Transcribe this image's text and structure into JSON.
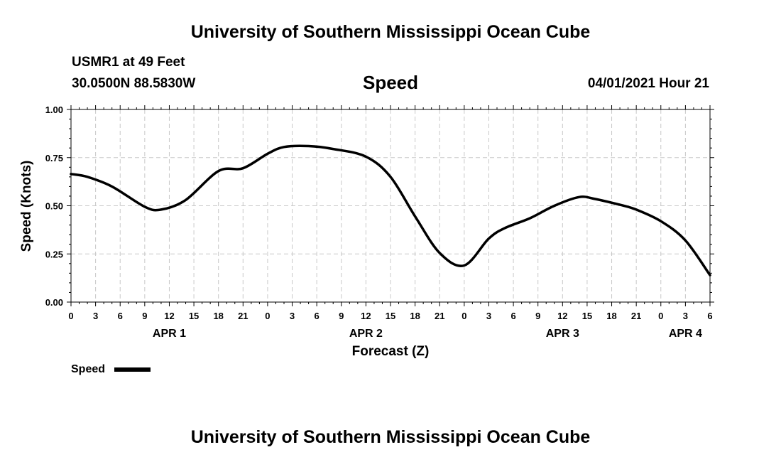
{
  "page_title_top": "University of Southern Mississippi Ocean Cube",
  "page_title_bottom": "University of Southern Mississippi Ocean Cube",
  "station": "USMR1 at 49 Feet",
  "coords": "30.0500N  88.5830W",
  "chart_heading": "Speed",
  "issued": "04/01/2021 Hour 21",
  "legend": {
    "label": "Speed",
    "color": "#000000"
  },
  "chart_data": {
    "type": "line",
    "title": "Speed",
    "xlabel": "Forecast (Z)",
    "ylabel": "Speed (Knots)",
    "xlim": [
      0,
      78
    ],
    "ylim": [
      0,
      1
    ],
    "grid": true,
    "yticks": [
      "0.00",
      "0.25",
      "0.50",
      "0.75",
      "1.00"
    ],
    "xtick_labels": [
      "0",
      "3",
      "6",
      "9",
      "12",
      "15",
      "18",
      "21",
      "0",
      "3",
      "6",
      "9",
      "12",
      "15",
      "18",
      "21",
      "0",
      "3",
      "6",
      "9",
      "12",
      "15",
      "18",
      "21",
      "0",
      "3",
      "6"
    ],
    "date_labels": [
      {
        "label": "APR 1",
        "x": 12
      },
      {
        "label": "APR 2",
        "x": 36
      },
      {
        "label": "APR 3",
        "x": 60
      },
      {
        "label": "APR 4",
        "x": 75
      }
    ],
    "series": [
      {
        "name": "Speed",
        "x": [
          0,
          2,
          5,
          9,
          11,
          14,
          18,
          21,
          24,
          26,
          29,
          32,
          36,
          39,
          42,
          45,
          48,
          51,
          53,
          56,
          59,
          62,
          64,
          67,
          69,
          72,
          75,
          78
        ],
        "values": [
          0.665,
          0.65,
          0.6,
          0.495,
          0.48,
          0.53,
          0.68,
          0.695,
          0.77,
          0.805,
          0.81,
          0.795,
          0.755,
          0.65,
          0.445,
          0.255,
          0.19,
          0.33,
          0.385,
          0.435,
          0.5,
          0.545,
          0.535,
          0.505,
          0.48,
          0.42,
          0.32,
          0.14
        ]
      }
    ]
  }
}
